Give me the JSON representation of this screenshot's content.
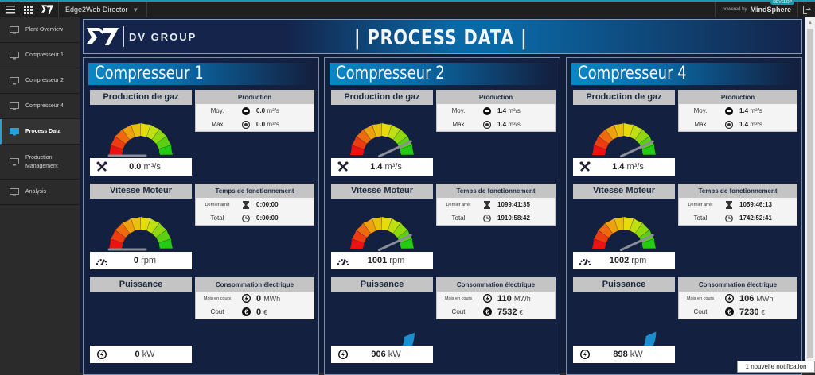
{
  "topbar": {
    "app_name": "Edge2Web Director",
    "powered_by": "powered by",
    "brand": "MindSphere",
    "env_badge": "DEVELOP"
  },
  "sidebar": {
    "items": [
      {
        "label": "Plant Overview",
        "icon": "monitor-icon",
        "active": false
      },
      {
        "label": "Compresseur 1",
        "icon": "monitor-icon",
        "active": false
      },
      {
        "label": "Compresseur 2",
        "icon": "monitor-icon",
        "active": false
      },
      {
        "label": "Compresseur 4",
        "icon": "monitor-icon",
        "active": false
      },
      {
        "label": "Process Data",
        "icon": "monitor-icon",
        "active": true
      },
      {
        "label": "Production Management",
        "icon": "monitor-icon",
        "active": false
      },
      {
        "label": "Analysis",
        "icon": "monitor-icon",
        "active": false
      }
    ]
  },
  "header": {
    "company": "DV GROUP",
    "title": "| PROCESS DATA |"
  },
  "labels": {
    "gas": "Production de gaz",
    "speed": "Vitesse Moteur",
    "power": "Puissance",
    "production": "Production",
    "moy": "Moy.",
    "max": "Max",
    "runtime": "Temps de fonctionnement",
    "last_stop": "Dernier arrêt",
    "total": "Total",
    "consumption": "Consommation électrique",
    "month": "Mois en cours",
    "cost": "Cout",
    "unit_flow": "m³/s",
    "unit_rpm": "rpm",
    "unit_kw": "kW",
    "unit_mwh": "MWh",
    "unit_eur": "€"
  },
  "panels": [
    {
      "title": "Compresseur 1",
      "gas": "0.0",
      "gas_moy": "0.0",
      "gas_max": "0.0",
      "rpm": "0",
      "last_stop": "0:00:00",
      "total": "0:00:00",
      "kw": "0",
      "mwh": "0",
      "cost": "0",
      "gas_pct": 0,
      "rpm_pct": 0,
      "kw_pct": 0
    },
    {
      "title": "Compresseur 2",
      "gas": "1.4",
      "gas_moy": "1.4",
      "gas_max": "1.4",
      "rpm": "1001",
      "last_stop": "1099:41:35",
      "total": "1910:58:42",
      "kw": "906",
      "mwh": "110",
      "cost": "7532",
      "gas_pct": 0.86,
      "rpm_pct": 0.86,
      "kw_pct": 0.88
    },
    {
      "title": "Compresseur 4",
      "gas": "1.4",
      "gas_moy": "1.4",
      "gas_max": "1.4",
      "rpm": "1002",
      "last_stop": "1059:46:13",
      "total": "1742:52:41",
      "kw": "898",
      "mwh": "106",
      "cost": "7230",
      "gas_pct": 0.86,
      "rpm_pct": 0.86,
      "kw_pct": 0.87
    }
  ],
  "notification": "1 nouvelle notification",
  "colors": {
    "accent": "#0b86c6",
    "background": "#13203f",
    "topbar_stripe": "#1a9aa8",
    "power_arc": "#1a8fd0"
  }
}
